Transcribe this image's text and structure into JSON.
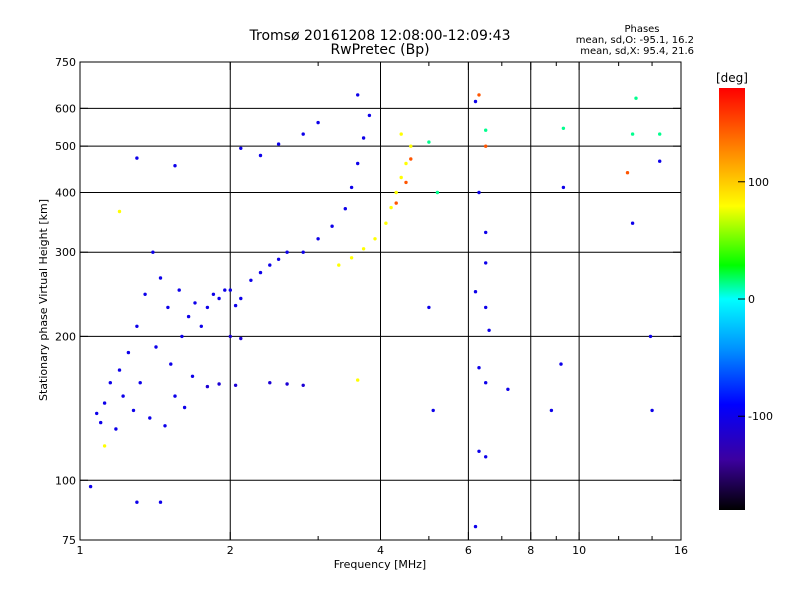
{
  "chart_data": {
    "type": "scatter",
    "title": "Tromsø 20161208 12:08:00-12:09:43",
    "subtitle": "RwPretec (Bp)",
    "xlabel": "Frequency [MHz]",
    "ylabel": "Stationary phase Virtual Height [km]",
    "x_scale": "log",
    "y_scale": "log",
    "xlim": [
      1,
      16
    ],
    "ylim": [
      75,
      750
    ],
    "x_ticks": [
      1,
      2,
      4,
      6,
      8,
      10,
      16
    ],
    "x_tick_labels": [
      "1",
      "2",
      "4",
      "6",
      "8",
      "10",
      "16"
    ],
    "x_minor_ticks": [
      3,
      5,
      7,
      9,
      12,
      14
    ],
    "y_ticks": [
      75,
      100,
      200,
      300,
      400,
      500,
      600,
      750
    ],
    "y_tick_labels": [
      "75",
      "100",
      "200",
      "300",
      "400",
      "500",
      "600",
      "750"
    ],
    "grid": true,
    "info": {
      "heading": "Phases",
      "line_o": "mean, sd,O: -95.1, 16.2",
      "line_x": "mean, sd,X:  95.4, 21.6"
    },
    "colorbar": {
      "label": "[deg]",
      "range": [
        -180,
        180
      ],
      "ticks": [
        100,
        0,
        -100
      ],
      "tick_labels": [
        "100",
        "0",
        "-100"
      ],
      "colormap": [
        "#000000",
        "#3c00a0",
        "#0000ff",
        "#0090ff",
        "#00ffff",
        "#00ff00",
        "#ffff00",
        "#ff8000",
        "#ff0000"
      ]
    },
    "series": [
      {
        "name": "",
        "phase_deg": -100,
        "points": [
          [
            1.08,
            138
          ],
          [
            1.1,
            132
          ],
          [
            1.12,
            145
          ],
          [
            1.15,
            160
          ],
          [
            1.18,
            128
          ],
          [
            1.2,
            170
          ],
          [
            1.22,
            150
          ],
          [
            1.25,
            185
          ],
          [
            1.28,
            140
          ],
          [
            1.3,
            210
          ],
          [
            1.32,
            160
          ],
          [
            1.35,
            245
          ],
          [
            1.38,
            135
          ],
          [
            1.4,
            300
          ],
          [
            1.42,
            190
          ],
          [
            1.45,
            265
          ],
          [
            1.48,
            130
          ],
          [
            1.5,
            230
          ],
          [
            1.52,
            175
          ],
          [
            1.55,
            150
          ],
          [
            1.58,
            250
          ],
          [
            1.6,
            200
          ],
          [
            1.62,
            142
          ],
          [
            1.65,
            220
          ],
          [
            1.68,
            165
          ],
          [
            1.7,
            235
          ],
          [
            1.75,
            210
          ],
          [
            1.8,
            230
          ],
          [
            1.85,
            245
          ],
          [
            1.9,
            240
          ],
          [
            1.95,
            250
          ],
          [
            2.0,
            250
          ],
          [
            2.05,
            232
          ],
          [
            2.1,
            240
          ],
          [
            2.2,
            262
          ],
          [
            2.3,
            272
          ],
          [
            2.4,
            282
          ],
          [
            2.5,
            290
          ],
          [
            2.6,
            300
          ],
          [
            2.8,
            300
          ],
          [
            3.0,
            320
          ],
          [
            3.2,
            340
          ],
          [
            3.4,
            370
          ],
          [
            3.5,
            410
          ],
          [
            3.6,
            460
          ],
          [
            3.7,
            520
          ],
          [
            3.8,
            580
          ],
          [
            3.6,
            640
          ],
          [
            2.3,
            478
          ],
          [
            2.5,
            505
          ],
          [
            2.8,
            530
          ],
          [
            3.0,
            560
          ],
          [
            2.1,
            495
          ],
          [
            1.3,
            472
          ],
          [
            1.55,
            455
          ]
        ]
      },
      {
        "name": "",
        "phase_deg": -110,
        "points": [
          [
            2.0,
            200
          ],
          [
            2.1,
            198
          ],
          [
            2.05,
            158
          ],
          [
            1.8,
            157
          ],
          [
            1.9,
            159
          ],
          [
            2.4,
            160
          ],
          [
            2.6,
            159
          ],
          [
            2.8,
            158
          ]
        ]
      },
      {
        "name": "",
        "phase_deg": 90,
        "points": [
          [
            3.3,
            282
          ],
          [
            3.5,
            292
          ],
          [
            3.7,
            305
          ],
          [
            3.9,
            320
          ],
          [
            4.1,
            345
          ],
          [
            4.2,
            372
          ],
          [
            4.3,
            400
          ],
          [
            4.4,
            430
          ],
          [
            4.5,
            460
          ],
          [
            4.6,
            500
          ],
          [
            4.4,
            530
          ],
          [
            3.6,
            162
          ],
          [
            1.2,
            365
          ],
          [
            1.12,
            118
          ]
        ]
      },
      {
        "name": "",
        "phase_deg": 150,
        "points": [
          [
            4.3,
            380
          ],
          [
            4.5,
            420
          ],
          [
            4.6,
            470
          ],
          [
            6.3,
            640
          ],
          [
            6.5,
            500
          ],
          [
            12.5,
            440
          ]
        ]
      },
      {
        "name": "",
        "phase_deg": -100,
        "points": [
          [
            6.2,
            620
          ],
          [
            6.3,
            400
          ],
          [
            6.5,
            330
          ],
          [
            6.5,
            285
          ],
          [
            6.2,
            248
          ],
          [
            6.5,
            230
          ],
          [
            6.6,
            206
          ],
          [
            6.3,
            172
          ],
          [
            6.5,
            160
          ],
          [
            6.3,
            115
          ],
          [
            6.5,
            112
          ],
          [
            6.2,
            80
          ],
          [
            7.2,
            155
          ],
          [
            8.8,
            140
          ],
          [
            9.2,
            175
          ],
          [
            9.3,
            410
          ],
          [
            12.8,
            345
          ],
          [
            13.9,
            200
          ],
          [
            14.0,
            140
          ],
          [
            14.5,
            465
          ],
          [
            5.1,
            140
          ],
          [
            5.0,
            230
          ],
          [
            1.05,
            97
          ],
          [
            1.45,
            90
          ],
          [
            1.3,
            90
          ]
        ]
      },
      {
        "name": "",
        "phase_deg": 20,
        "points": [
          [
            5.0,
            510
          ],
          [
            5.2,
            400
          ],
          [
            6.5,
            540
          ],
          [
            12.8,
            530
          ],
          [
            14.5,
            530
          ],
          [
            9.3,
            545
          ],
          [
            13.0,
            630
          ]
        ]
      }
    ]
  }
}
